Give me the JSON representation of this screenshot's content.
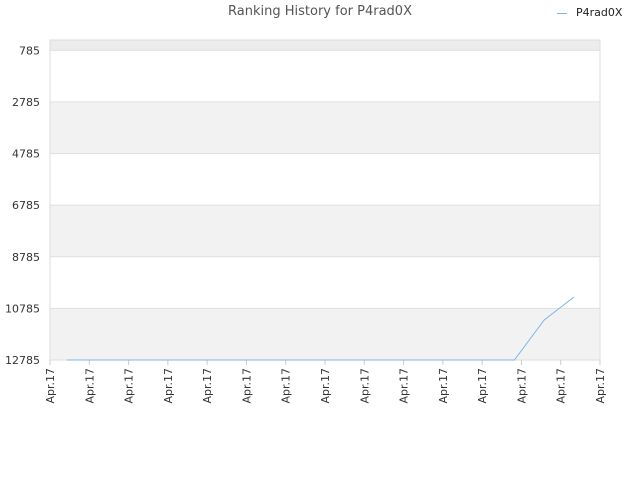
{
  "title": "Ranking History for P4rad0X",
  "legend": {
    "label": "P4rad0X",
    "color": "#7cb5ec"
  },
  "chart_data": {
    "type": "line",
    "title": "Ranking History for P4rad0X",
    "xlabel": "",
    "ylabel": "",
    "y_inverted": true,
    "ylim": [
      12785,
      385
    ],
    "yticks": [
      785,
      2785,
      4785,
      6785,
      8785,
      10785,
      12785
    ],
    "xtick_labels": [
      "Apr.17",
      "Apr.17",
      "Apr.17",
      "Apr.17",
      "Apr.17",
      "Apr.17",
      "Apr.17",
      "Apr.17",
      "Apr.17",
      "Apr.17",
      "Apr.17",
      "Apr.17",
      "Apr.17",
      "Apr.17",
      "Apr.17"
    ],
    "grid": true,
    "legend_position": "top-right",
    "series": [
      {
        "name": "P4rad0X",
        "color": "#7cb5ec",
        "values": [
          12785,
          12785,
          12785,
          12785,
          12785,
          12785,
          12785,
          12785,
          12785,
          12785,
          12785,
          12785,
          12785,
          12785,
          12785,
          12785,
          11235,
          10345
        ]
      }
    ]
  }
}
